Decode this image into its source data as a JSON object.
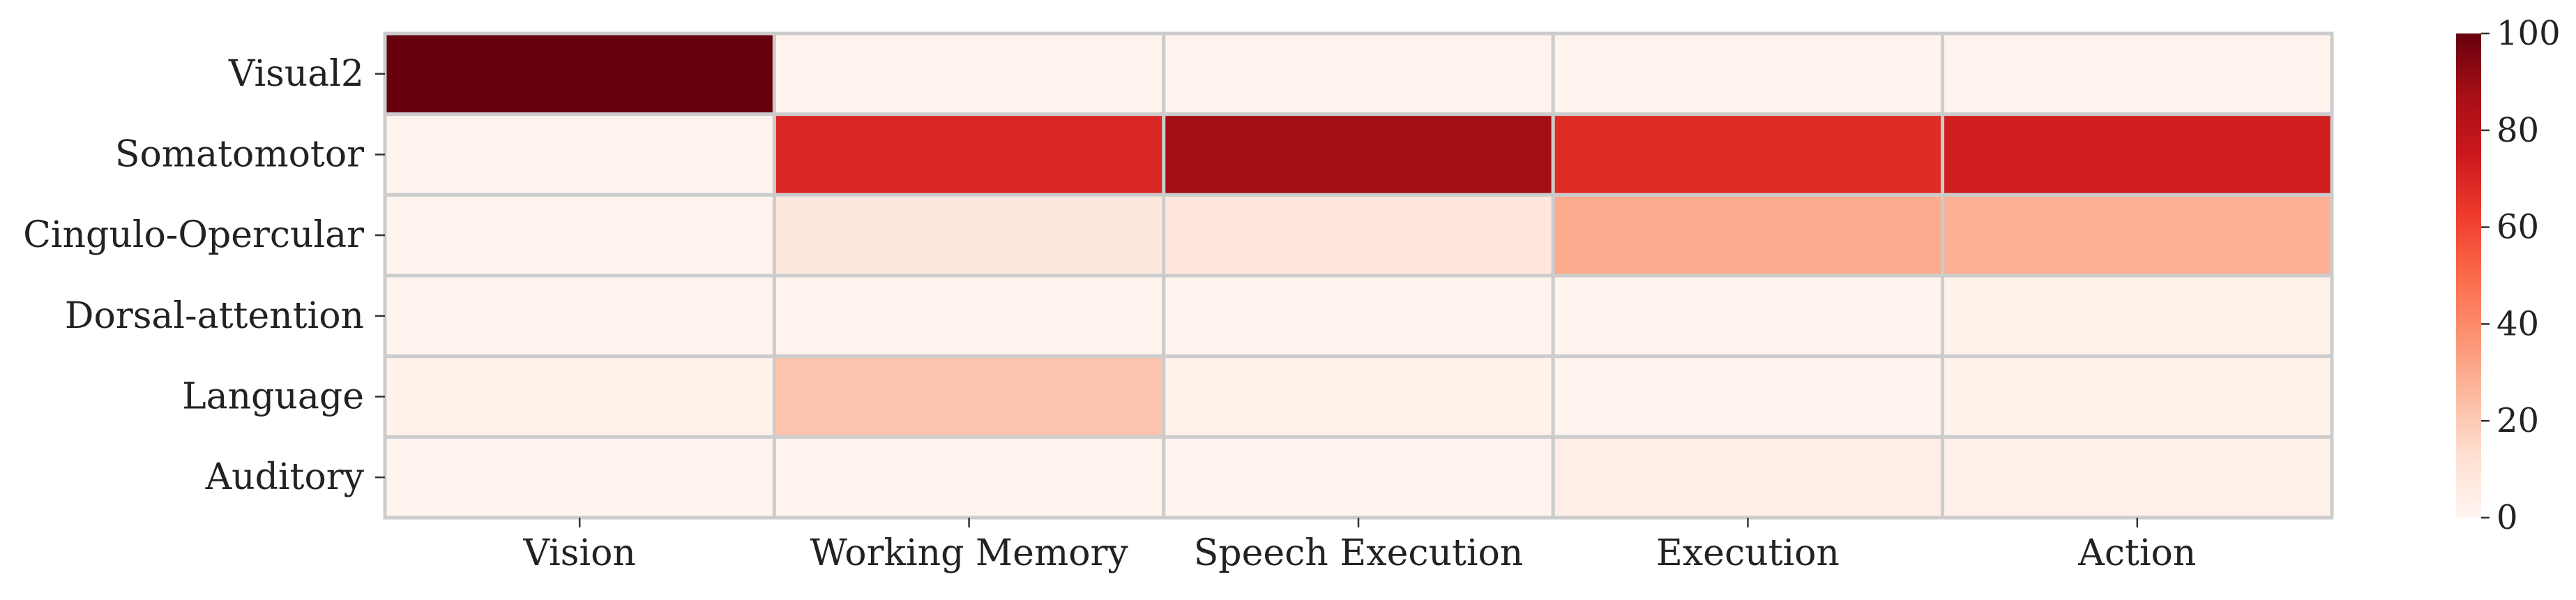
{
  "chart_data": {
    "type": "heatmap",
    "title": "",
    "xlabel": "",
    "ylabel": "",
    "x_categories": [
      "Vision",
      "Working Memory",
      "Speech Execution",
      "Execution",
      "Action"
    ],
    "y_categories": [
      "Visual2",
      "Somatomotor",
      "Cingulo-Opercular",
      "Dorsal-attention",
      "Language",
      "Auditory"
    ],
    "values": [
      [
        100,
        1,
        1,
        1,
        1
      ],
      [
        1,
        70,
        88,
        68,
        73
      ],
      [
        1,
        8,
        9,
        30,
        28
      ],
      [
        1,
        1,
        1,
        1,
        2
      ],
      [
        2,
        22,
        2,
        1,
        2
      ],
      [
        1,
        1,
        1,
        4,
        3
      ]
    ],
    "value_range": [
      0,
      100
    ],
    "colormap": "Reds",
    "colorbar": {
      "ticks": [
        0,
        20,
        40,
        60,
        80,
        100
      ],
      "tick_labels": [
        "0",
        "20",
        "40",
        "60",
        "80",
        "100"
      ]
    },
    "cell_border_color": "#cccccc"
  }
}
